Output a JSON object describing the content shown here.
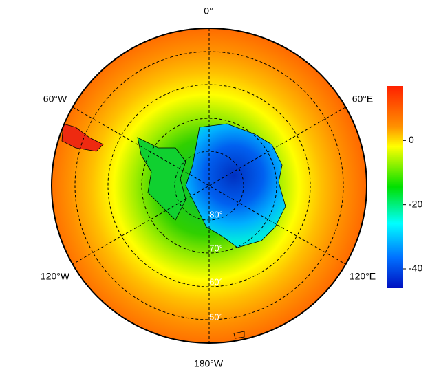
{
  "map": {
    "longitude_labels": [
      "0°",
      "60°E",
      "120°E",
      "180°W",
      "120°W",
      "60°W"
    ],
    "latitude_labels": [
      "80°",
      "70°",
      "60°",
      "50°"
    ]
  },
  "colorbar": {
    "lim": [
      -46,
      17
    ],
    "ticks": [
      0,
      -20,
      -40
    ]
  }
}
